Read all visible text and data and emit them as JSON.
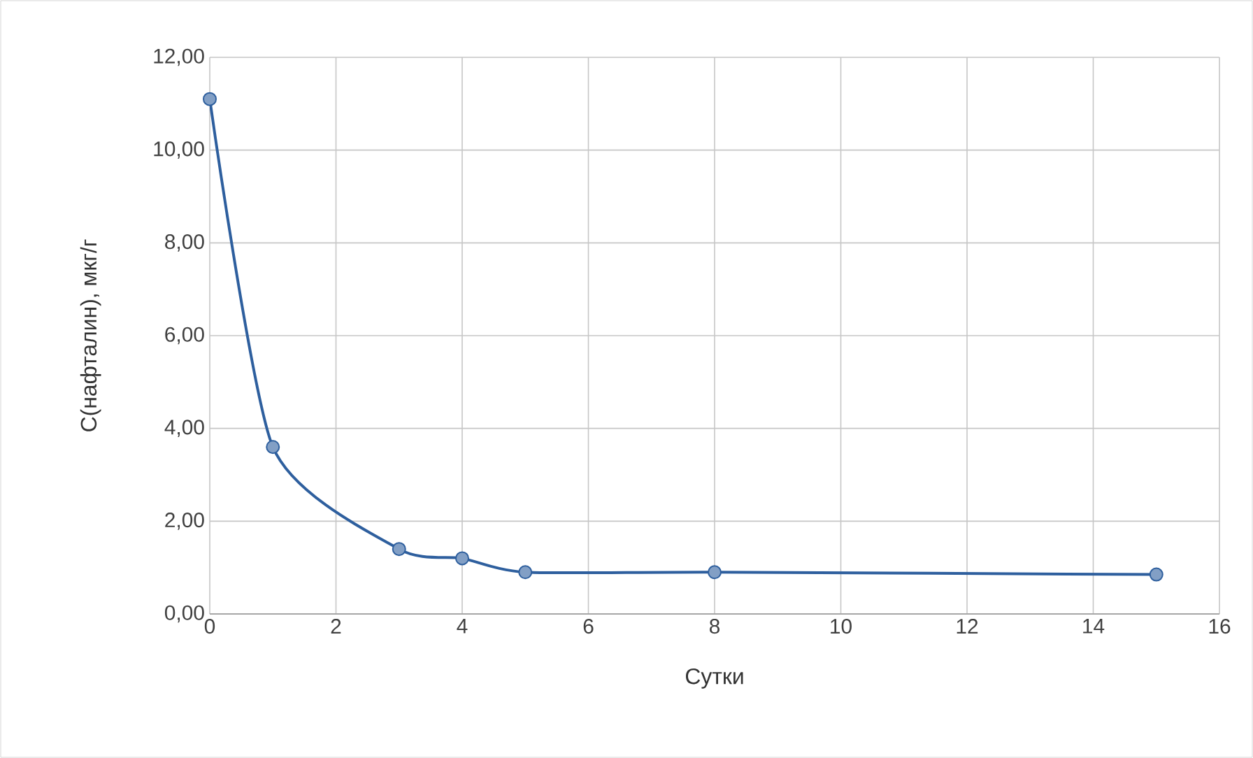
{
  "chart_data": {
    "type": "line",
    "xlabel": "Сутки",
    "ylabel": "C(нафталин), мкг/г",
    "x": [
      0,
      1,
      3,
      4,
      5,
      8,
      15
    ],
    "series": [
      {
        "color": "#2e5f9e",
        "values": [
          11.1,
          3.6,
          1.4,
          1.2,
          0.9,
          0.9,
          0.85
        ]
      }
    ],
    "xlim": [
      0,
      16
    ],
    "xticks": [
      0,
      2,
      4,
      6,
      8,
      10,
      12,
      14,
      16
    ],
    "ylim": [
      0,
      12
    ],
    "yticks": [
      {
        "value": 0,
        "label": "0,00"
      },
      {
        "value": 2,
        "label": "2,00"
      },
      {
        "value": 4,
        "label": "4,00"
      },
      {
        "value": 6,
        "label": "6,00"
      },
      {
        "value": 8,
        "label": "8,00"
      },
      {
        "value": 10,
        "label": "10,00"
      },
      {
        "value": 12,
        "label": "12,00"
      }
    ],
    "grid": true,
    "marker": "circle",
    "line_style": "solid"
  }
}
